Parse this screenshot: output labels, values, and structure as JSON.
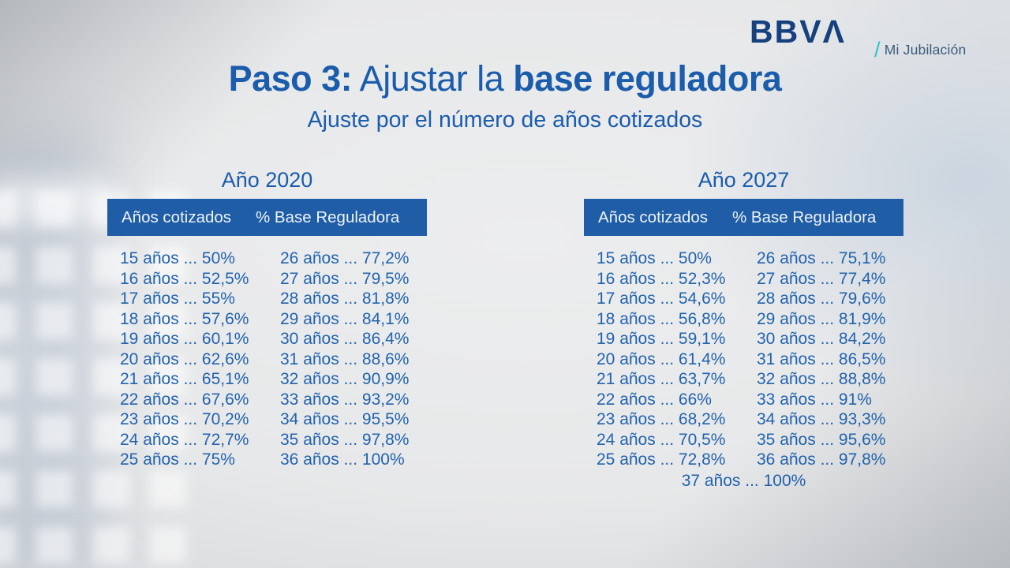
{
  "brand": {
    "logo_text": "BBVΛ",
    "tagline_slash": "/",
    "tagline": "Mi Jubilación"
  },
  "heading": {
    "title_bold_1": "Paso 3:",
    "title_regular": " Ajustar la ",
    "title_bold_2": "base reguladora",
    "subtitle": "Ajuste por el número de años cotizados"
  },
  "colors": {
    "title-blue": "#1b5cab",
    "text-blue": "#2263ac",
    "header-bar": "#1f5da6",
    "header-text": "#eef3f9",
    "logo-navy": "#16417e",
    "tagline-teal": "#2cc3c6"
  },
  "tables": [
    {
      "year_label": "Año 2020",
      "headers": [
        "Años cotizados",
        "% Base Reguladora"
      ],
      "col_left": [
        "15 años ... 50%",
        "16 años ... 52,5%",
        "17 años ... 55%",
        "18 años ... 57,6%",
        "19 años ... 60,1%",
        "20 años ... 62,6%",
        "21 años ... 65,1%",
        "22 años ... 67,6%",
        "23 años ... 70,2%",
        "24 años ... 72,7%",
        "25 años ... 75%"
      ],
      "col_right": [
        "26 años ... 77,2%",
        "27 años ... 79,5%",
        "28 años ... 81,8%",
        "29 años ... 84,1%",
        "30 años ... 86,4%",
        "31 años ... 88,6%",
        "32 años ... 90,9%",
        "33 años ... 93,2%",
        "34 años ... 95,5%",
        "35 años ... 97,8%",
        "36 años ... 100%"
      ]
    },
    {
      "year_label": "Año 2027",
      "headers": [
        "Años cotizados",
        "% Base Reguladora"
      ],
      "col_left": [
        "15 años ... 50%",
        "16 años ... 52,3%",
        "17 años ... 54,6%",
        "18 años ... 56,8%",
        "19 años ... 59,1%",
        "20 años ... 61,4%",
        "21 años ... 63,7%",
        "22 años ... 66%",
        "23 años ... 68,2%",
        "24 años ... 70,5%",
        "25 años ... 72,8%"
      ],
      "col_right": [
        "26 años ... 75,1%",
        "27 años ... 77,4%",
        "28 años ... 79,6%",
        "29 años ... 81,9%",
        "30 años ... 84,2%",
        "31 años ... 86,5%",
        "32 años ... 88,8%",
        "33 años ... 91%",
        "34 años ... 93,3%",
        "35 años ... 95,6%",
        "36 años ... 97,8%"
      ],
      "footer": "37 años ... 100%"
    }
  ]
}
